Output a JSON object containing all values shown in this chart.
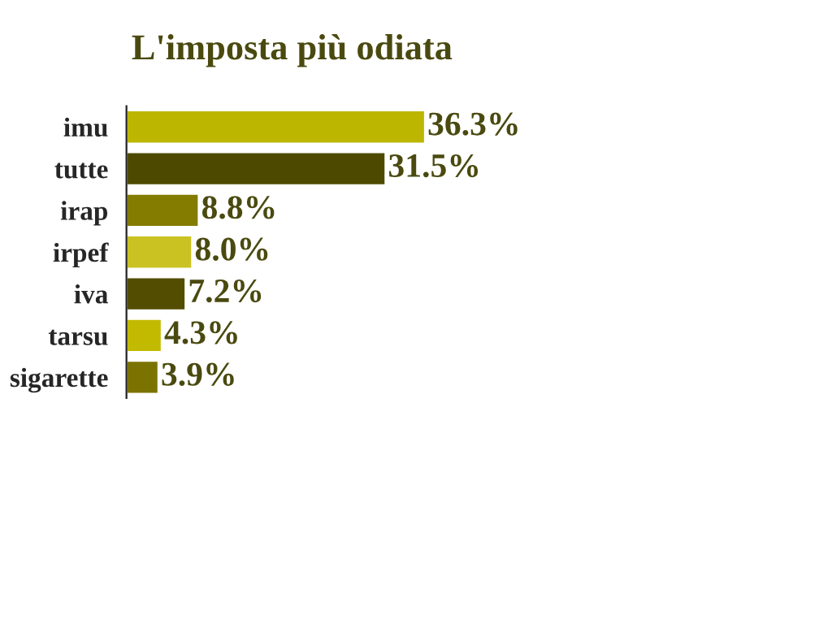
{
  "chart_data": {
    "type": "bar",
    "orientation": "horizontal",
    "title": "L'imposta più odiata",
    "categories": [
      "imu",
      "tutte",
      "irap",
      "irpef",
      "iva",
      "tarsu",
      "sigarette"
    ],
    "values": [
      36.3,
      31.5,
      8.8,
      8.0,
      7.2,
      4.3,
      3.9
    ],
    "value_labels": [
      "36.3%",
      "31.5%",
      "8.8%",
      "8.0%",
      "7.2%",
      "4.3%",
      "3.9%"
    ],
    "colors": [
      "#bdb600",
      "#4d4a00",
      "#847c00",
      "#c9c222",
      "#524d00",
      "#c2ba00",
      "#7b7300"
    ],
    "grid": false,
    "legend": false
  }
}
